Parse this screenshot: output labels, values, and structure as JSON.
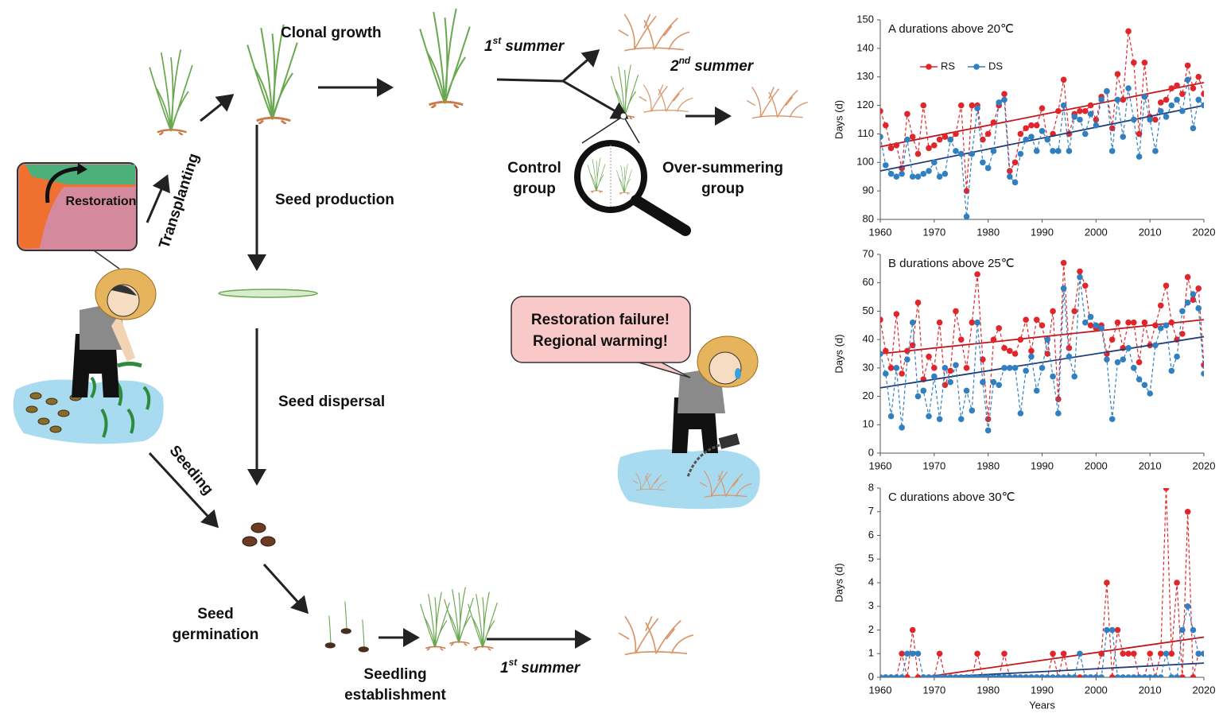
{
  "diagram": {
    "clonal_growth": "Clonal growth",
    "first_summer_top": {
      "number": "1",
      "suffix": "st",
      "text": "summer"
    },
    "second_summer": {
      "number": "2",
      "suffix": "nd",
      "text": "summer"
    },
    "transplanting": "Transplanting",
    "restoration_map": "Restoration",
    "seed_production": "Seed production",
    "seed_dispersal": "Seed dispersal",
    "seeding": "Seeding",
    "seed_germination": [
      "Seed",
      "germination"
    ],
    "seedling_establishment": [
      "Seedling",
      "establishment"
    ],
    "first_summer_bottom": {
      "number": "1",
      "suffix": "st",
      "text": "summer"
    },
    "control_group": [
      "Control",
      "group"
    ],
    "over_summering_group": [
      "Over-summering",
      "group"
    ],
    "speech": [
      "Restoration failure!",
      "Regional warming!"
    ]
  },
  "chart_data": [
    {
      "type": "line",
      "title": "A  durations above 20℃",
      "ylabel": "Days (d)",
      "legend": "upper left",
      "grid": false,
      "x": [
        1960,
        1961,
        1962,
        1963,
        1964,
        1965,
        1966,
        1967,
        1968,
        1969,
        1970,
        1971,
        1972,
        1973,
        1974,
        1975,
        1976,
        1977,
        1978,
        1979,
        1980,
        1981,
        1982,
        1983,
        1984,
        1985,
        1986,
        1987,
        1988,
        1989,
        1990,
        1991,
        1992,
        1993,
        1994,
        1995,
        1996,
        1997,
        1998,
        1999,
        2000,
        2001,
        2002,
        2003,
        2004,
        2005,
        2006,
        2007,
        2008,
        2009,
        2010,
        2011,
        2012,
        2013,
        2014,
        2015,
        2016,
        2017,
        2018,
        2019,
        2020
      ],
      "xlim": [
        1960,
        2020
      ],
      "xticks": [
        1960,
        1970,
        1980,
        1990,
        2000,
        2010,
        2020
      ],
      "ylim": [
        80,
        150
      ],
      "yticks": [
        80,
        90,
        100,
        110,
        120,
        130,
        140,
        150
      ],
      "series": [
        {
          "name": "RS",
          "color": "#e0262b",
          "trend_color": "#c0171d",
          "trend": [
            105.5,
            128
          ],
          "values": [
            118,
            113,
            105,
            106,
            98,
            117,
            109,
            103,
            120,
            105,
            106,
            108,
            109,
            108,
            110,
            120,
            90,
            120,
            120,
            108,
            110,
            114,
            120,
            124,
            97,
            100,
            110,
            112,
            113,
            113,
            119,
            108,
            110,
            118,
            129,
            110,
            117,
            118,
            118,
            120,
            115,
            123,
            125,
            112,
            131,
            122,
            146,
            135,
            110,
            135,
            116,
            115,
            121,
            122,
            126,
            127,
            124,
            134,
            126,
            130,
            124
          ]
        },
        {
          "name": "DS",
          "color": "#2f7fc1",
          "trend_color": "#1f3d7a",
          "trend": [
            97,
            120
          ],
          "values": [
            109,
            99,
            96,
            95,
            96,
            108,
            95,
            95,
            96,
            97,
            100,
            95,
            96,
            108,
            104,
            103,
            81,
            103,
            119,
            100,
            98,
            104,
            121,
            122,
            95,
            93,
            103,
            108,
            109,
            104,
            111,
            108,
            104,
            104,
            120,
            104,
            116,
            115,
            110,
            117,
            113,
            122,
            125,
            104,
            122,
            109,
            126,
            115,
            102,
            123,
            115,
            104,
            118,
            116,
            120,
            122,
            118,
            129,
            112,
            122,
            120
          ]
        }
      ]
    },
    {
      "type": "line",
      "title": "B  durations above 25℃",
      "ylabel": "Days (d)",
      "grid": false,
      "x": [
        1960,
        1961,
        1962,
        1963,
        1964,
        1965,
        1966,
        1967,
        1968,
        1969,
        1970,
        1971,
        1972,
        1973,
        1974,
        1975,
        1976,
        1977,
        1978,
        1979,
        1980,
        1981,
        1982,
        1983,
        1984,
        1985,
        1986,
        1987,
        1988,
        1989,
        1990,
        1991,
        1992,
        1993,
        1994,
        1995,
        1996,
        1997,
        1998,
        1999,
        2000,
        2001,
        2002,
        2003,
        2004,
        2005,
        2006,
        2007,
        2008,
        2009,
        2010,
        2011,
        2012,
        2013,
        2014,
        2015,
        2016,
        2017,
        2018,
        2019,
        2020
      ],
      "xlim": [
        1960,
        2020
      ],
      "xticks": [
        1960,
        1970,
        1980,
        1990,
        2000,
        2010,
        2020
      ],
      "ylim": [
        0,
        70
      ],
      "yticks": [
        0,
        10,
        20,
        30,
        40,
        50,
        60,
        70
      ],
      "series": [
        {
          "color": "#e0262b",
          "trend_color": "#c0171d",
          "trend": [
            35,
            47
          ],
          "values": [
            47,
            36,
            30,
            49,
            28,
            36,
            38,
            53,
            26,
            34,
            30,
            46,
            24,
            29,
            50,
            40,
            30,
            46,
            63,
            33,
            12,
            40,
            44,
            37,
            36,
            35,
            40,
            47,
            36,
            47,
            45,
            35,
            50,
            19,
            67,
            37,
            50,
            64,
            59,
            45,
            44,
            45,
            35,
            40,
            46,
            37,
            46,
            46,
            32,
            46,
            38,
            45,
            52,
            59,
            46,
            40,
            42,
            62,
            54,
            58,
            31
          ]
        },
        {
          "color": "#2f7fc1",
          "trend_color": "#1f3d7a",
          "trend": [
            23,
            41
          ],
          "values": [
            35,
            28,
            13,
            30,
            9,
            33,
            46,
            20,
            22,
            13,
            27,
            12,
            30,
            25,
            31,
            12,
            22,
            15,
            46,
            25,
            8,
            25,
            24,
            30,
            30,
            30,
            14,
            29,
            34,
            22,
            30,
            40,
            27,
            14,
            58,
            34,
            27,
            62,
            46,
            48,
            45,
            44,
            33,
            12,
            32,
            33,
            37,
            30,
            26,
            24,
            21,
            38,
            44,
            45,
            29,
            34,
            50,
            53,
            56,
            51,
            28
          ]
        }
      ]
    },
    {
      "type": "line",
      "title": "C  durations above 30℃",
      "ylabel": "Days (d)",
      "xlabel": "Years",
      "grid": false,
      "x": [
        1960,
        1961,
        1962,
        1963,
        1964,
        1965,
        1966,
        1967,
        1968,
        1969,
        1970,
        1971,
        1972,
        1973,
        1974,
        1975,
        1976,
        1977,
        1978,
        1979,
        1980,
        1981,
        1982,
        1983,
        1984,
        1985,
        1986,
        1987,
        1988,
        1989,
        1990,
        1991,
        1992,
        1993,
        1994,
        1995,
        1996,
        1997,
        1998,
        1999,
        2000,
        2001,
        2002,
        2003,
        2004,
        2005,
        2006,
        2007,
        2008,
        2009,
        2010,
        2011,
        2012,
        2013,
        2014,
        2015,
        2016,
        2017,
        2018,
        2019,
        2020
      ],
      "xlim": [
        1960,
        2020
      ],
      "xticks": [
        1960,
        1970,
        1980,
        1990,
        2000,
        2010,
        2020
      ],
      "ylim": [
        0,
        8
      ],
      "yticks": [
        0,
        1,
        2,
        3,
        4,
        5,
        6,
        7,
        8
      ],
      "series": [
        {
          "color": "#e0262b",
          "trend_color": "#c0171d",
          "trend": [
            -0.26,
            1.7
          ],
          "values": [
            0,
            0,
            0,
            0,
            1,
            0,
            2,
            0,
            0,
            0,
            0,
            1,
            0,
            0,
            0,
            0,
            0,
            0,
            1,
            0,
            0,
            0,
            0,
            1,
            0,
            0,
            0,
            0,
            0,
            0,
            0,
            0,
            1,
            0,
            1,
            0,
            0,
            0,
            0,
            0,
            0,
            1,
            4,
            0,
            2,
            1,
            1,
            1,
            0,
            0,
            1,
            0,
            1,
            8,
            1,
            4,
            0,
            7,
            0,
            1,
            1
          ]
        },
        {
          "color": "#2f7fc1",
          "trend_color": "#1f3d7a",
          "trend": [
            -0.12,
            0.6
          ],
          "values": [
            0,
            0,
            0,
            0,
            0,
            1,
            1,
            1,
            0,
            0,
            0,
            0,
            0,
            0,
            0,
            0,
            0,
            0,
            0,
            0,
            0,
            0,
            0,
            0,
            0,
            0,
            0,
            0,
            0,
            0,
            0,
            0,
            0,
            0,
            0,
            0,
            0,
            1,
            0,
            0,
            0,
            0,
            2,
            2,
            0,
            0,
            0,
            0,
            0,
            0,
            0,
            0,
            0,
            1,
            0,
            0,
            2,
            3,
            2,
            1,
            1
          ]
        }
      ]
    }
  ]
}
